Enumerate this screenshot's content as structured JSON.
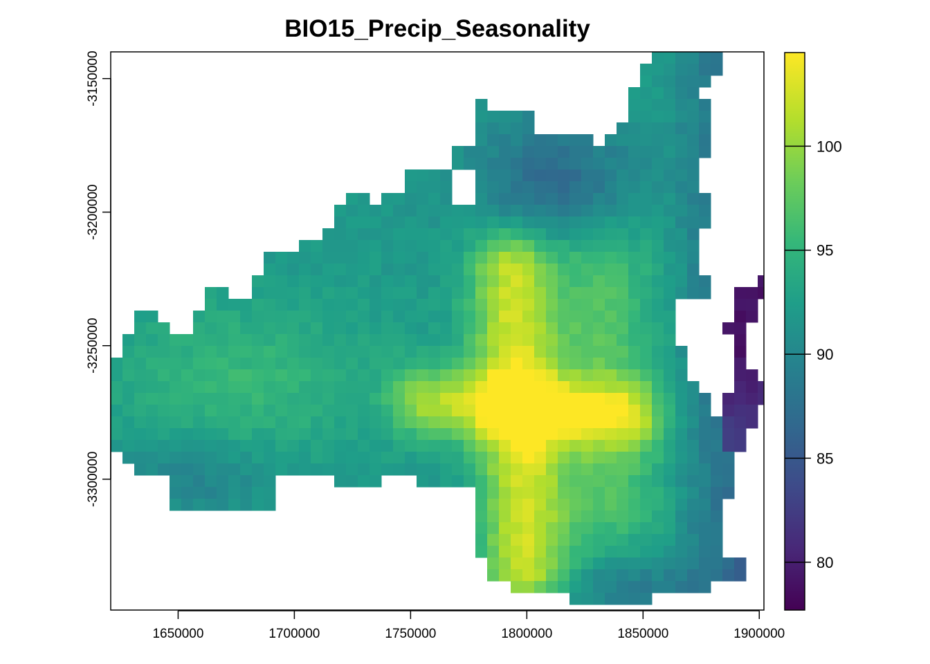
{
  "title": "BIO15_Precip_Seasonality",
  "map_data": {
    "type": "raster",
    "variable": "BIO15_Precip_Seasonality",
    "x_range": [
      1621000,
      1902000
    ],
    "y_range": [
      -3349000,
      -3140000
    ],
    "x_ticks": [
      1650000,
      1700000,
      1750000,
      1800000,
      1850000,
      1900000
    ],
    "y_ticks": [
      -3150000,
      -3200000,
      -3250000,
      -3300000
    ],
    "x_tick_labels": [
      "1650000",
      "1700000",
      "1750000",
      "1800000",
      "1850000",
      "1900000"
    ],
    "y_tick_labels": [
      "-3150000",
      "-3200000",
      "-3250000",
      "-3300000"
    ],
    "value_range": [
      77.7,
      104.5
    ],
    "legend_ticks": [
      80,
      85,
      90,
      95,
      100
    ],
    "legend_labels": [
      "80",
      "85",
      "90",
      "95",
      "100"
    ],
    "palette": "viridis",
    "colors": [
      "#440154",
      "#482878",
      "#3E4A89",
      "#31688E",
      "#26828E",
      "#1F9E89",
      "#35B779",
      "#6DCD59",
      "#B4DE2C",
      "#FDE725"
    ],
    "grid": false,
    "legend_position": "right"
  }
}
